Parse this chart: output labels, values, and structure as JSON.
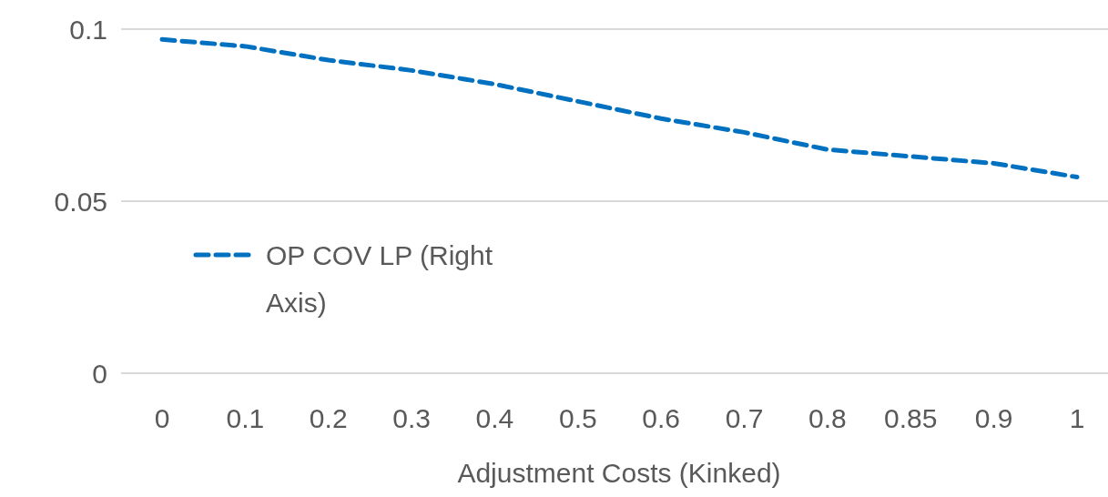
{
  "chart_data": {
    "type": "line",
    "xlabel": "Adjustment Costs (Kinked)",
    "categories": [
      "0",
      "0.1",
      "0.2",
      "0.3",
      "0.4",
      "0.5",
      "0.6",
      "0.7",
      "0.8",
      "0.85",
      "0.9",
      "1"
    ],
    "series": [
      {
        "name": "OP COV LP (Right Axis)",
        "color": "#0070c0",
        "values": [
          0.097,
          0.095,
          0.091,
          0.088,
          0.084,
          0.079,
          0.074,
          0.07,
          0.065,
          0.063,
          0.061,
          0.057
        ]
      }
    ],
    "ylim": [
      0,
      0.1
    ],
    "yticks": [
      0,
      0.05,
      0.1
    ],
    "grid": "y",
    "legend": "left",
    "line_style": "dashed",
    "marker": "none"
  }
}
